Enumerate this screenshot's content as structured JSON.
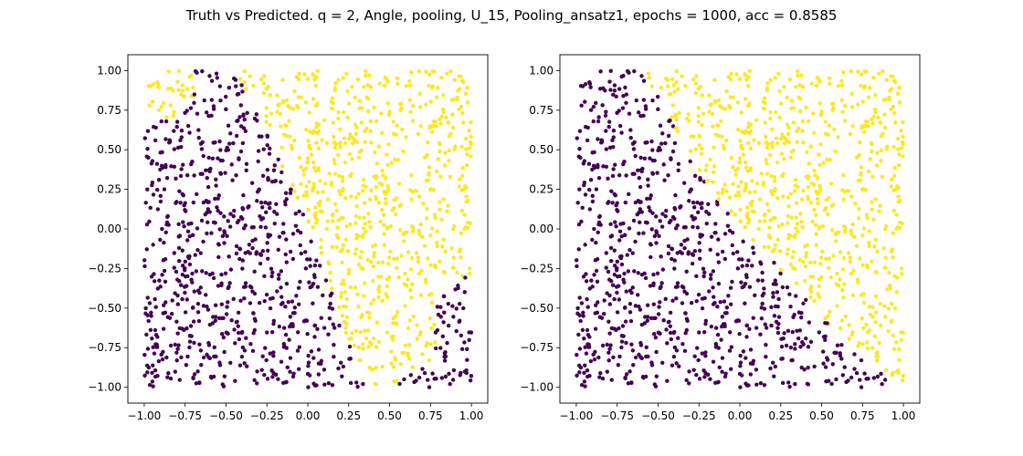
{
  "figure": {
    "title": "Truth vs Predicted. q = 2, Angle, pooling, U_15, Pooling_ansatz1, epochs = 1000, acc = 0.8585"
  },
  "colors": {
    "class_0": "#440154",
    "class_1": "#fde725",
    "axes": "#000000",
    "background": "#ffffff"
  },
  "chart_data": [
    {
      "type": "scatter",
      "panel": "truth",
      "xlim": [
        -1.1,
        1.1
      ],
      "ylim": [
        -1.1,
        1.1
      ],
      "xticks": [
        -1.0,
        -0.75,
        -0.5,
        -0.25,
        0.0,
        0.25,
        0.5,
        0.75,
        1.0
      ],
      "xtick_labels": [
        "−1.00",
        "−0.75",
        "−0.50",
        "−0.25",
        "0.00",
        "0.25",
        "0.50",
        "0.75",
        "1.00"
      ],
      "yticks": [
        -1.0,
        -0.75,
        -0.5,
        -0.25,
        0.0,
        0.25,
        0.5,
        0.75,
        1.0
      ],
      "ytick_labels": [
        "−1.00",
        "−0.75",
        "−0.50",
        "−0.25",
        "0.00",
        "0.25",
        "0.50",
        "0.75",
        "1.00"
      ],
      "grid": false,
      "classes": [
        {
          "label": 0,
          "color": "#440154",
          "region": "left / lower-left area; boundary curves from (-0.45, 1.0) through (-0.1, 0.25), (0.05, 0.0), (0.2, -0.5) to (0.35, -1.0); plus lower-right corner x > 0.8, y < -0.3"
        },
        {
          "label": 1,
          "color": "#fde725",
          "region": "right / upper area; plus upper-left corner strip"
        }
      ],
      "point_count_approx": 1500
    },
    {
      "type": "scatter",
      "panel": "predicted",
      "xlim": [
        -1.1,
        1.1
      ],
      "ylim": [
        -1.1,
        1.1
      ],
      "xticks": [
        -1.0,
        -0.75,
        -0.5,
        -0.25,
        0.0,
        0.25,
        0.5,
        0.75,
        1.0
      ],
      "xtick_labels": [
        "−1.00",
        "−0.75",
        "−0.50",
        "−0.25",
        "0.00",
        "0.25",
        "0.50",
        "0.75",
        "1.00"
      ],
      "yticks": [
        -1.0,
        -0.75,
        -0.5,
        -0.25,
        0.0,
        0.25,
        0.5,
        0.75,
        1.0
      ],
      "ytick_labels": [
        "−1.00",
        "−0.75",
        "−0.50",
        "−0.25",
        "0.00",
        "0.25",
        "0.50",
        "0.75",
        "1.00"
      ],
      "grid": false,
      "classes": [
        {
          "label": 0,
          "color": "#440154",
          "region": "left / lower-left half; near-linear boundary from (-0.6, 1.0) through (-0.2, 0.3), (0.0, 0.0), (0.5, -0.55) to (0.85, -0.9)"
        },
        {
          "label": 1,
          "color": "#fde725",
          "region": "upper-right half"
        }
      ],
      "point_count_approx": 1500
    }
  ]
}
